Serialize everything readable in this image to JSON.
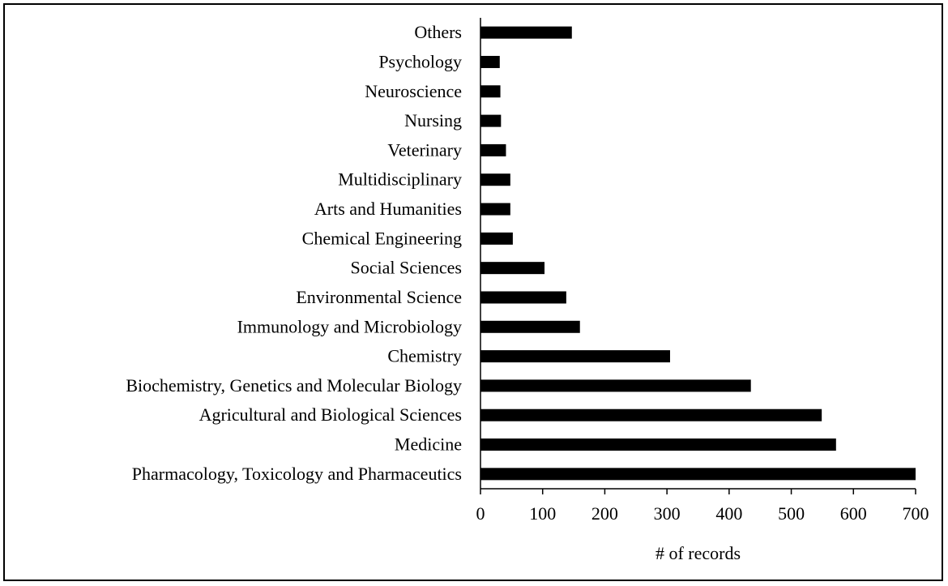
{
  "chart_data": {
    "type": "bar",
    "orientation": "horizontal",
    "categories": [
      "Pharmacology, Toxicology and Pharmaceutics",
      "Medicine",
      "Agricultural and Biological Sciences",
      "Biochemistry, Genetics and Molecular Biology",
      "Chemistry",
      "Immunology and Microbiology",
      "Environmental Science",
      "Social Sciences",
      "Chemical Engineering",
      "Arts and Humanities",
      "Multidisciplinary",
      "Veterinary",
      "Nursing",
      "Neuroscience",
      "Psychology",
      "Others"
    ],
    "values": [
      700,
      572,
      549,
      435,
      305,
      160,
      138,
      103,
      52,
      48,
      48,
      41,
      33,
      32,
      31,
      147
    ],
    "title": "",
    "xlabel": "# of records",
    "ylabel": "",
    "xlim": [
      0,
      700
    ],
    "xticks": [
      "0",
      "100",
      "200",
      "300",
      "400",
      "500",
      "600",
      "700"
    ],
    "grid": false,
    "legend": "none",
    "bar_color": "#000000"
  }
}
